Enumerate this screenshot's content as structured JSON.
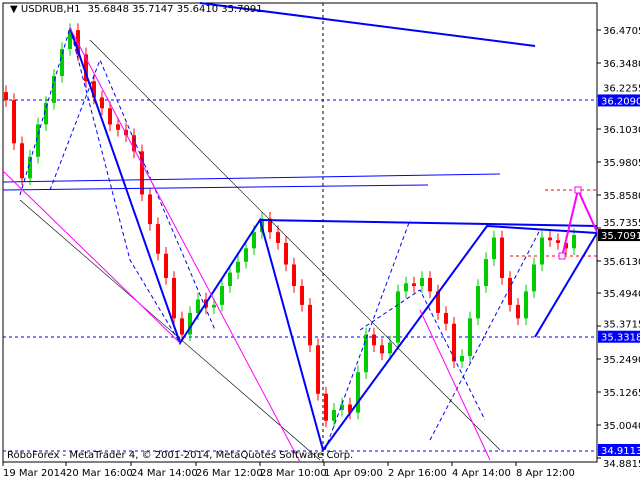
{
  "header": {
    "symbol": "USDRUB,H1",
    "open": "35.6848",
    "high": "35.7147",
    "low": "35.6410",
    "close": "35.7091"
  },
  "footer": {
    "copyright": "RoboForex - MetaTrader 4, © 2001-2014, MetaQuotes Software Corp."
  },
  "colors": {
    "bull": "#00cc00",
    "bear": "#ff0000",
    "lines": "#0000ff",
    "projection": "#ff00ff",
    "current_price_bg": "#000000",
    "level_bg": "#0000ff"
  },
  "chart_data": {
    "type": "candlestick",
    "title": "USDRUB,H1",
    "ylim": [
      34.8815,
      36.4705
    ],
    "y_ticks": [
      "36.4705",
      "36.3480",
      "36.2255",
      "36.1030",
      "35.9805",
      "35.8580",
      "35.7355",
      "35.6130",
      "35.4940",
      "35.3715",
      "35.2490",
      "35.1265",
      "35.0040",
      "34.8815"
    ],
    "x_ticks": [
      "19 Mar 2014",
      "20 Mar 16:00",
      "24 Mar 14:00",
      "26 Mar 12:00",
      "28 Mar 10:00",
      "1 Apr 09:00",
      "2 Apr 16:00",
      "4 Apr 14:00",
      "8 Apr 12:00"
    ],
    "close": [
      36.21,
      36.05,
      35.92,
      36.0,
      36.12,
      36.2,
      36.3,
      36.4,
      36.47,
      36.38,
      36.28,
      36.22,
      36.18,
      36.12,
      36.1,
      36.08,
      36.02,
      35.86,
      35.75,
      35.64,
      35.55,
      35.4,
      35.34,
      35.42,
      35.47,
      35.44,
      35.45,
      35.52,
      35.57,
      35.61,
      35.66,
      35.72,
      35.77,
      35.72,
      35.68,
      35.6,
      35.52,
      35.45,
      35.3,
      35.12,
      35.02,
      35.06,
      35.08,
      35.05,
      35.2,
      35.34,
      35.3,
      35.27,
      35.31,
      35.5,
      35.53,
      35.52,
      35.55,
      35.5,
      35.42,
      35.38,
      35.24,
      35.26,
      35.4,
      35.52,
      35.62,
      35.7,
      35.55,
      35.45,
      35.4,
      35.5,
      35.6,
      35.7,
      35.69,
      35.68,
      35.66,
      35.7091
    ],
    "levels": [
      "36.2090",
      "35.3318",
      "34.9113"
    ],
    "current_price": "35.7091"
  }
}
